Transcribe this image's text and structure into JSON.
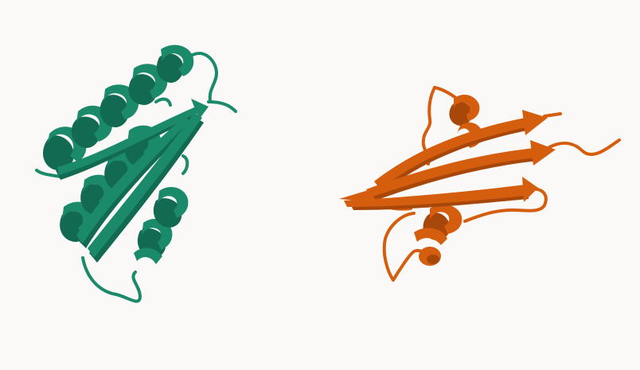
{
  "scene": {
    "background": "#fbf9f7",
    "structures": [
      {
        "name": "chain-a",
        "color": "#1b8a6b",
        "shade": "#126a52",
        "highlight": "#2aa682"
      },
      {
        "name": "chain-b",
        "color": "#d45d0e",
        "shade": "#a8470a",
        "highlight": "#e8762a"
      }
    ]
  }
}
